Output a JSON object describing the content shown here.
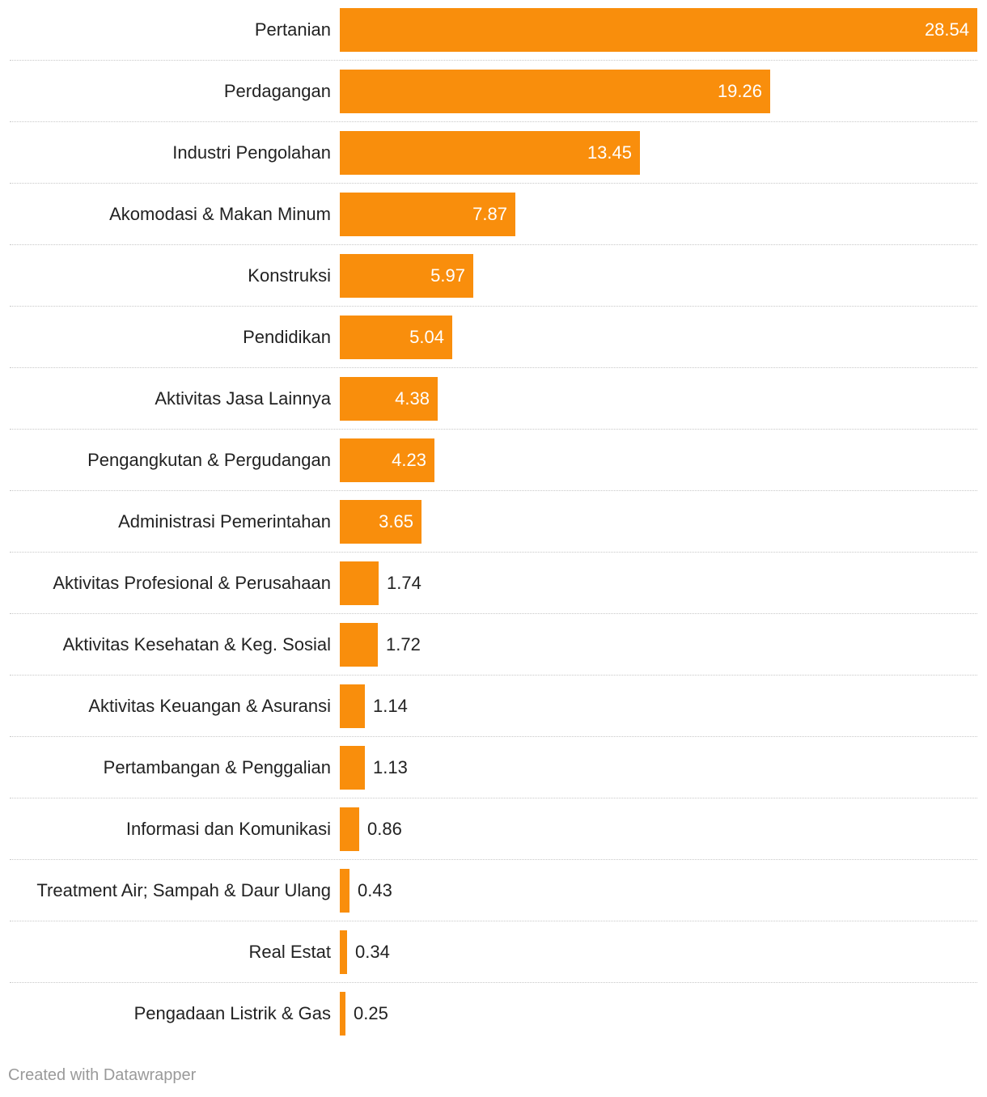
{
  "chart_data": {
    "type": "bar",
    "orientation": "horizontal",
    "categories": [
      "Pertanian",
      "Perdagangan",
      "Industri Pengolahan",
      "Akomodasi & Makan Minum",
      "Konstruksi",
      "Pendidikan",
      "Aktivitas Jasa Lainnya",
      "Pengangkutan & Pergudangan",
      "Administrasi Pemerintahan",
      "Aktivitas Profesional & Perusahaan",
      "Aktivitas Kesehatan & Keg. Sosial",
      "Aktivitas Keuangan & Asuransi",
      "Pertambangan & Penggalian",
      "Informasi dan Komunikasi",
      "Treatment Air; Sampah & Daur Ulang",
      "Real Estat",
      "Pengadaan Listrik & Gas"
    ],
    "values": [
      28.54,
      19.26,
      13.45,
      7.87,
      5.97,
      5.04,
      4.38,
      4.23,
      3.65,
      1.74,
      1.72,
      1.14,
      1.13,
      0.86,
      0.43,
      0.34,
      0.25
    ],
    "value_labels": [
      "28.54",
      "19.26",
      "13.45",
      "7.87",
      "5.97",
      "5.04",
      "4.38",
      "4.23",
      "3.65",
      "1.74",
      "1.72",
      "1.14",
      "1.13",
      "0.86",
      "0.43",
      "0.34",
      "0.25"
    ],
    "xlim": [
      0,
      28.54
    ],
    "bar_color": "#f98e0c",
    "grid": false,
    "legend": "none"
  },
  "footer": {
    "credit": "Created with Datawrapper"
  }
}
